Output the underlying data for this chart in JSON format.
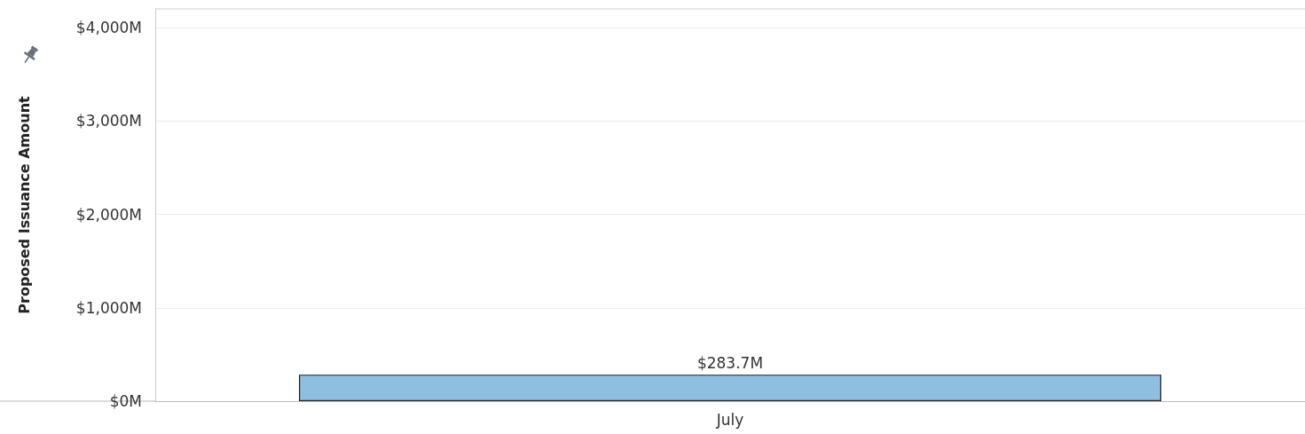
{
  "chart_data": {
    "type": "bar",
    "ylabel": "Proposed Issuance Amount",
    "categories": [
      "July"
    ],
    "values": [
      283.7
    ],
    "value_labels": [
      "$283.7M"
    ],
    "color": "#8fbfe0",
    "ylim": [
      0,
      4200
    ],
    "yticks": [
      {
        "value": 0,
        "label": "$0M"
      },
      {
        "value": 1000,
        "label": "$1,000M"
      },
      {
        "value": 2000,
        "label": "$2,000M"
      },
      {
        "value": 3000,
        "label": "$3,000M"
      },
      {
        "value": 4000,
        "label": "$4,000M"
      }
    ],
    "grid": "y"
  }
}
